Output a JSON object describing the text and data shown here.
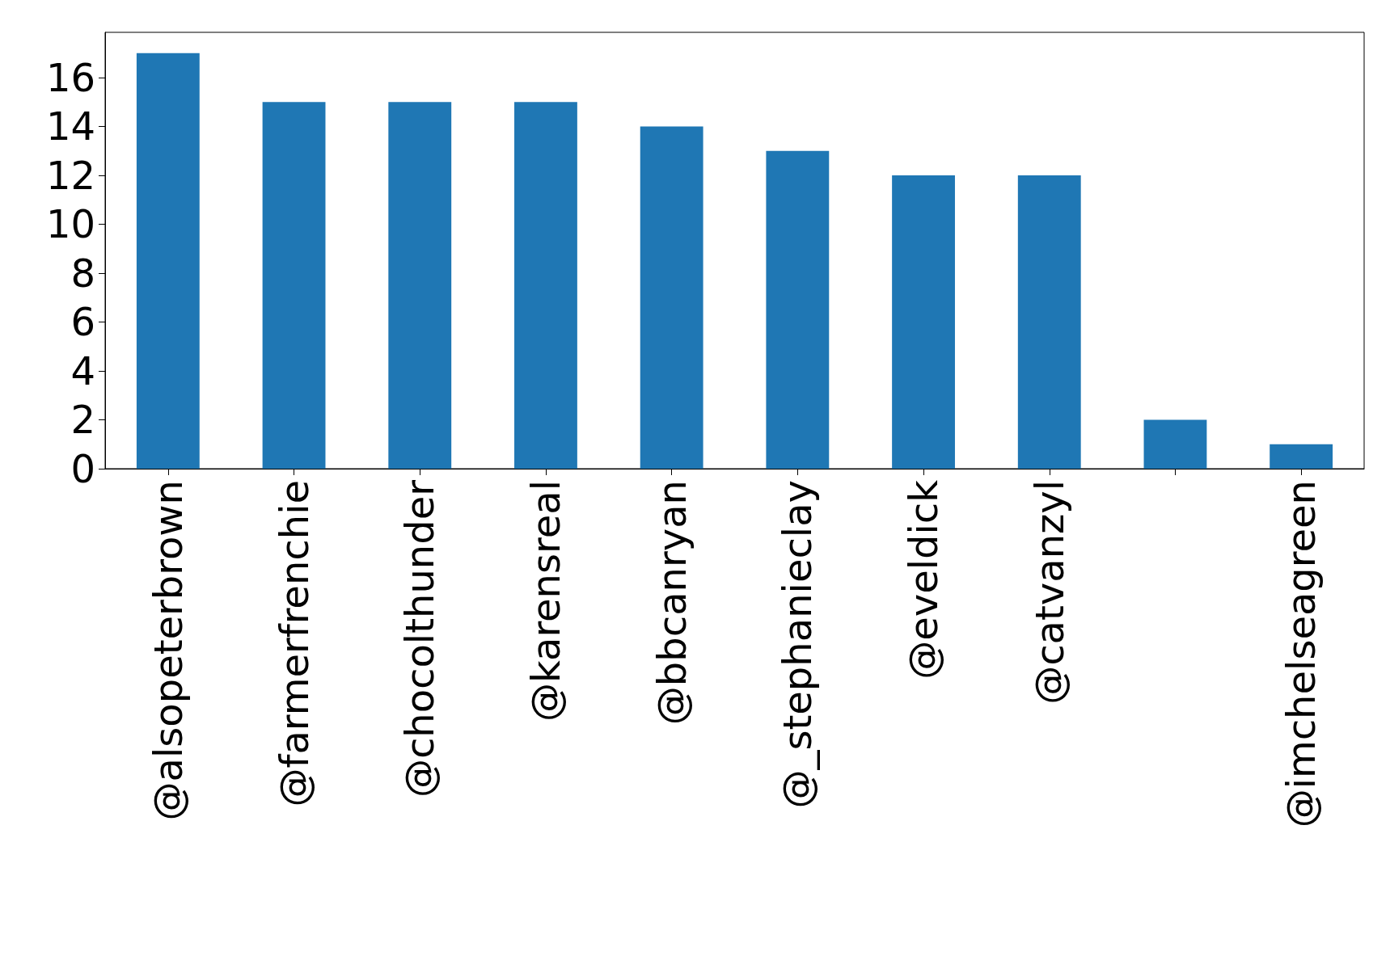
{
  "chart_data": {
    "type": "bar",
    "categories": [
      "@alsopeterbrown",
      "@farmerfrenchie",
      "@chocolthunder",
      "@karensreal",
      "@bbcanryan",
      "@_stephanieclay",
      "@eveldick",
      "@catvanzyl",
      null,
      "@imchelseagreen"
    ],
    "values": [
      17,
      15,
      15,
      15,
      14,
      13,
      12,
      12,
      2,
      1
    ],
    "color": "#1f77b4",
    "ylim": [
      0,
      17.85
    ],
    "yticks": [
      0,
      2,
      4,
      6,
      8,
      10,
      12,
      14,
      16
    ],
    "grid": false
  }
}
